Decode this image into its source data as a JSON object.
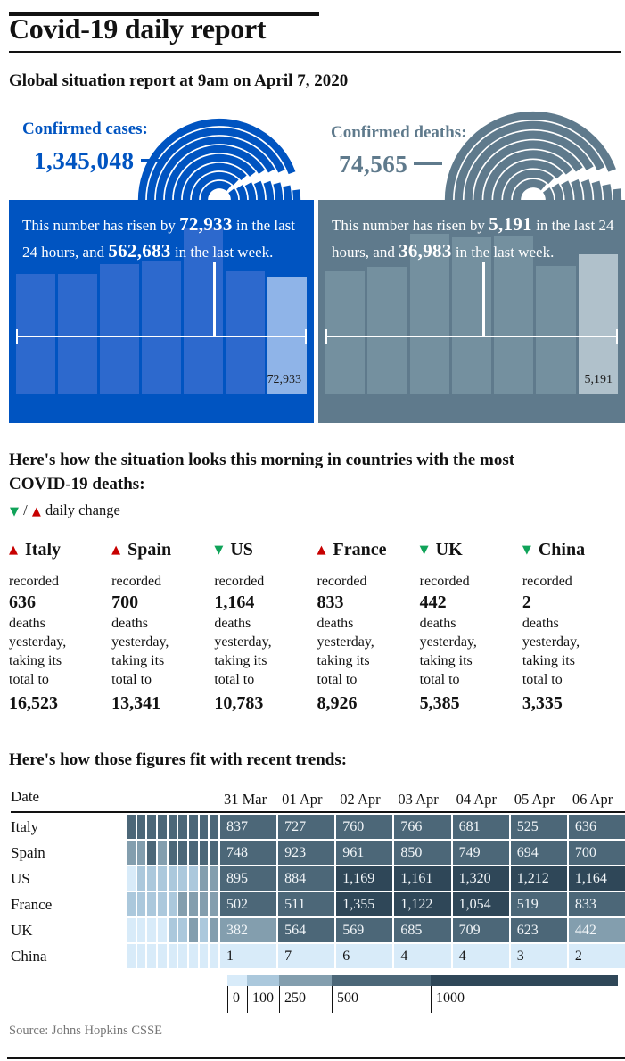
{
  "title": "Covid-19 daily report",
  "subtitle": "Global situation report at 9am on April 7, 2020",
  "source": "Source: Johns Hopkins CSSE",
  "colors": {
    "cases_bg": "#0054c1",
    "cases_bar": "#2d69cd",
    "cases_bar_latest": "#8fb4e8",
    "deaths_bg": "#5f7a8c",
    "deaths_bar": "#74909f",
    "deaths_bar_latest": "#b0c1cb",
    "up": "#c70000",
    "down": "#10a359",
    "heat": [
      "#d8ebf9",
      "#abc8dc",
      "#839eae",
      "#4c6778",
      "#2f4758"
    ],
    "heat_text_dark": "#121212",
    "heat_text_light": "#f2f6f9"
  },
  "cases_panel": {
    "label": "Confirmed cases:",
    "total": "1,345,048",
    "text_parts": [
      "This number has risen by ",
      "72,933",
      " in the last 24 hours, and ",
      "562,683",
      " in the last week."
    ],
    "bar_label": "72,933"
  },
  "deaths_panel": {
    "label": "Confirmed deaths:",
    "total": "74,565",
    "text_parts": [
      "This number has risen by ",
      "5,191",
      " in the last 24 hours, and ",
      "36,983",
      " in the last week."
    ],
    "bar_label": "5,191"
  },
  "countries_section": {
    "heading_lines": [
      "Here's how the situation looks this morning in countries with the most",
      "COVID-19 deaths:"
    ],
    "down_char": "▼",
    "legend_slash": " / ",
    "up_char": "▲",
    "legend_text": " daily change",
    "recorded_word": "recorded",
    "middle_lines": [
      "deaths",
      "yesterday,",
      "taking its",
      "total to"
    ],
    "countries": [
      {
        "name": "Italy",
        "direction": "up",
        "recorded": "636",
        "total": "16,523"
      },
      {
        "name": "Spain",
        "direction": "up",
        "recorded": "700",
        "total": "13,341"
      },
      {
        "name": "US",
        "direction": "down",
        "recorded": "1,164",
        "total": "10,783"
      },
      {
        "name": "France",
        "direction": "up",
        "recorded": "833",
        "total": "8,926"
      },
      {
        "name": "UK",
        "direction": "down",
        "recorded": "442",
        "total": "5,385"
      },
      {
        "name": "China",
        "direction": "down",
        "recorded": "2",
        "total": "3,335"
      }
    ]
  },
  "trends_section": {
    "heading": "Here's how those figures fit with recent trends:",
    "date_header": "Date",
    "dates": [
      "31 Mar",
      "01 Apr",
      "02 Apr",
      "03 Apr",
      "04 Apr",
      "05 Apr",
      "06 Apr"
    ],
    "rows": [
      {
        "country": "Italy",
        "values": [
          "837",
          "727",
          "760",
          "766",
          "681",
          "525",
          "636"
        ],
        "bands": [
          3,
          3,
          3,
          3,
          3,
          3,
          3
        ],
        "history_bands": [
          3,
          3,
          3,
          3,
          3,
          3,
          3,
          3,
          3
        ]
      },
      {
        "country": "Spain",
        "values": [
          "748",
          "923",
          "961",
          "850",
          "749",
          "694",
          "700"
        ],
        "bands": [
          3,
          3,
          3,
          3,
          3,
          3,
          3
        ],
        "history_bands": [
          2,
          2,
          3,
          2,
          3,
          3,
          3,
          3,
          3
        ]
      },
      {
        "country": "US",
        "values": [
          "895",
          "884",
          "1,169",
          "1,161",
          "1,320",
          "1,212",
          "1,164"
        ],
        "bands": [
          3,
          3,
          4,
          4,
          4,
          4,
          4
        ],
        "history_bands": [
          0,
          1,
          1,
          1,
          1,
          1,
          1,
          2,
          2
        ]
      },
      {
        "country": "France",
        "values": [
          "502",
          "511",
          "1,355",
          "1,122",
          "1,054",
          "519",
          "833"
        ],
        "bands": [
          3,
          3,
          4,
          4,
          4,
          3,
          3
        ],
        "history_bands": [
          1,
          1,
          1,
          1,
          1,
          2,
          2,
          2,
          2
        ]
      },
      {
        "country": "UK",
        "values": [
          "382",
          "564",
          "569",
          "685",
          "709",
          "623",
          "442"
        ],
        "bands": [
          2,
          3,
          3,
          3,
          3,
          3,
          2
        ],
        "history_bands": [
          0,
          0,
          0,
          0,
          1,
          1,
          2,
          1,
          2
        ]
      },
      {
        "country": "China",
        "values": [
          "1",
          "7",
          "6",
          "4",
          "4",
          "3",
          "2"
        ],
        "bands": [
          0,
          0,
          0,
          0,
          0,
          0,
          0
        ],
        "history_bands": [
          0,
          0,
          0,
          0,
          0,
          0,
          0,
          0,
          0
        ]
      }
    ],
    "scale_labels": [
      "0",
      "100",
      "250",
      "500",
      "1000"
    ]
  },
  "chart_data": [
    {
      "type": "bar",
      "title": "Confirmed cases — new cases per day over the last 7 days",
      "total": 1345048,
      "rise_24h": 72933,
      "rise_week": 562683,
      "values": [
        74600,
        74600,
        80700,
        82900,
        103500,
        76300,
        72933
      ],
      "note": "only the final bar is labelled (72,933); other values estimated from bar heights"
    },
    {
      "type": "bar",
      "title": "Confirmed deaths — new deaths per day over the last 7 days",
      "total": 74565,
      "rise_24h": 5191,
      "rise_week": 36983,
      "values": [
        4560,
        4730,
        5960,
        5830,
        5860,
        4760,
        5191
      ],
      "note": "only the final bar is labelled (5,191); other values estimated from bar heights"
    },
    {
      "type": "heatmap",
      "title": "Daily Covid-19 deaths by country",
      "categories": [
        "31 Mar",
        "01 Apr",
        "02 Apr",
        "03 Apr",
        "04 Apr",
        "05 Apr",
        "06 Apr"
      ],
      "series": [
        {
          "name": "Italy",
          "values": [
            837,
            727,
            760,
            766,
            681,
            525,
            636
          ]
        },
        {
          "name": "Spain",
          "values": [
            748,
            923,
            961,
            850,
            749,
            694,
            700
          ]
        },
        {
          "name": "US",
          "values": [
            895,
            884,
            1169,
            1161,
            1320,
            1212,
            1164
          ]
        },
        {
          "name": "France",
          "values": [
            502,
            511,
            1355,
            1122,
            1054,
            519,
            833
          ]
        },
        {
          "name": "UK",
          "values": [
            382,
            564,
            569,
            685,
            709,
            623,
            442
          ]
        },
        {
          "name": "China",
          "values": [
            1,
            7,
            6,
            4,
            4,
            3,
            2
          ]
        }
      ],
      "color_scale_breaks": [
        0,
        100,
        250,
        500,
        1000
      ],
      "legend_position": "bottom"
    }
  ]
}
